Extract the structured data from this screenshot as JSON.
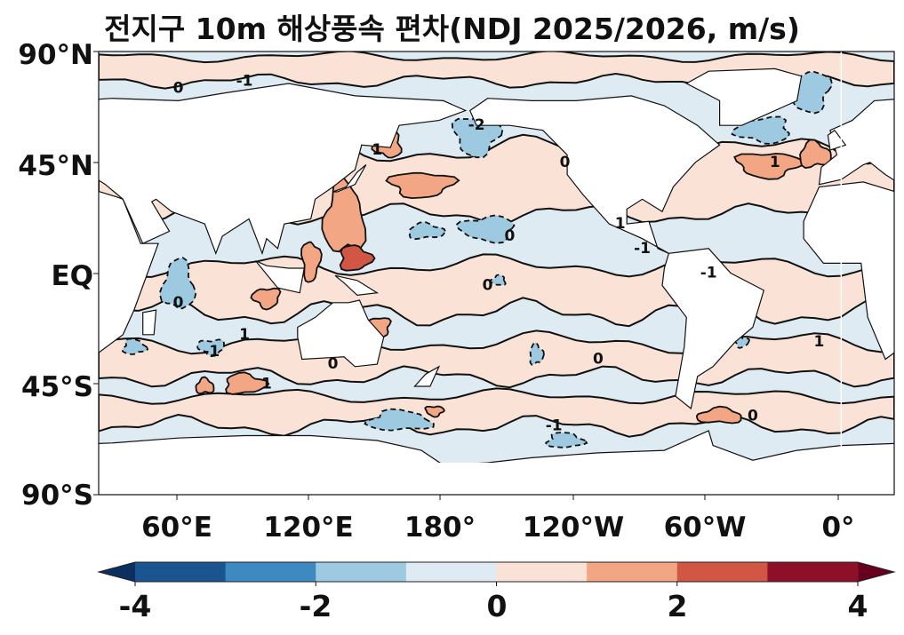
{
  "title": "전지구 10m 해상풍속 편차(NDJ 2025/2026, m/s)",
  "map": {
    "projection": "plate carree",
    "lat_ticks": [
      "90°N",
      "45°N",
      "EQ",
      "45°S",
      "90°S"
    ],
    "lon_ticks": [
      "60°E",
      "120°E",
      "180°",
      "120°W",
      "60°W",
      "0°"
    ],
    "contour_levels": [
      -1,
      0,
      1
    ],
    "contour_labels": [
      "0",
      "-1",
      "1",
      "-2",
      "0",
      "0",
      "1",
      "-1",
      "0",
      "1",
      "-1",
      "0",
      "1",
      "0",
      "-1",
      "1",
      "0",
      "-1",
      "0",
      "1"
    ]
  },
  "colorbar": {
    "ticks": [
      "-4",
      "-2",
      "0",
      "2",
      "4"
    ],
    "levels": [
      -4,
      -3,
      -2,
      -1,
      0,
      1,
      2,
      3,
      4
    ],
    "colors": [
      "#1a5590",
      "#3e89c1",
      "#9dc9e1",
      "#dfebf3",
      "#fae3d6",
      "#f3a683",
      "#d15644",
      "#8e1028"
    ],
    "under_color": "#0b2f5e",
    "over_color": "#67001f"
  }
}
